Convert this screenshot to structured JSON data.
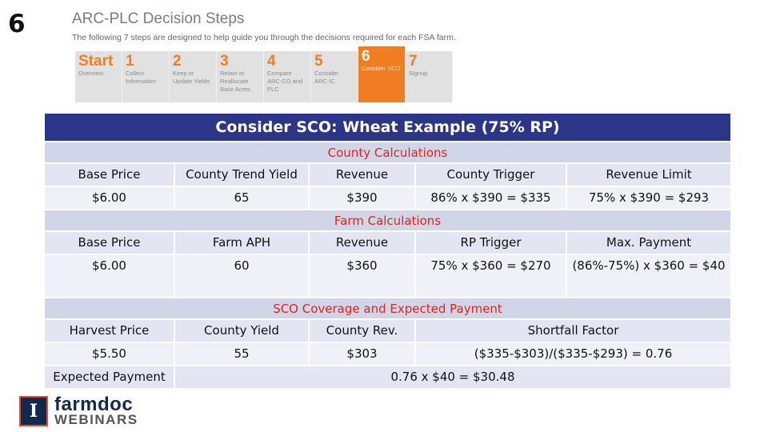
{
  "slide_number": "6",
  "header": {
    "title": "ARC-PLC Decision Steps",
    "subtitle": "The following 7 steps are designed to help guide you through the decisions required for each FSA farm."
  },
  "steps": [
    {
      "num": "Start",
      "label": "Overview"
    },
    {
      "num": "1",
      "label": "Collect\nInformation"
    },
    {
      "num": "2",
      "label": "Keep or\nUpdate Yields"
    },
    {
      "num": "3",
      "label": "Retain or\nReallocate\nBase Acres"
    },
    {
      "num": "4",
      "label": "Compare\nARC-CO and\nPLC"
    },
    {
      "num": "5",
      "label": "Consider\nARC-IC"
    },
    {
      "num": "6",
      "label": "Consider SCO",
      "active": true
    },
    {
      "num": "7",
      "label": "Signup"
    }
  ],
  "table": {
    "title": "Consider SCO:  Wheat Example (75% RP)",
    "county": {
      "section": "County Calculations",
      "headers": [
        "Base Price",
        "County Trend Yield",
        "Revenue",
        "County Trigger",
        "Revenue Limit"
      ],
      "values": [
        "$6.00",
        "65",
        "$390",
        "86% x $390 = $335",
        "75% x $390 = $293"
      ]
    },
    "farm": {
      "section": "Farm Calculations",
      "headers": [
        "Base Price",
        "Farm APH",
        "Revenue",
        "RP Trigger",
        "Max. Payment"
      ],
      "values": [
        "$6.00",
        "60",
        "$360",
        "75% x $360 = $270",
        "(86%-75%) x $360 = $40"
      ]
    },
    "sco": {
      "section": "SCO Coverage and Expected Payment",
      "headers": [
        "Harvest Price",
        "County Yield",
        "County Rev.",
        "Shortfall Factor"
      ],
      "values": [
        "$5.50",
        "55",
        "$303",
        "($335-$303)/($335-$293) = 0.76"
      ],
      "expected_label": "Expected Payment",
      "expected_value": "0.76 x $40 = $30.48"
    }
  },
  "logo": {
    "badge": "I",
    "line1": "farmdoc",
    "line2": "WEBINARS"
  },
  "colors": {
    "title_bar": "#2c3689",
    "section_text": "#e2231a",
    "step_accent": "#f07d21"
  }
}
